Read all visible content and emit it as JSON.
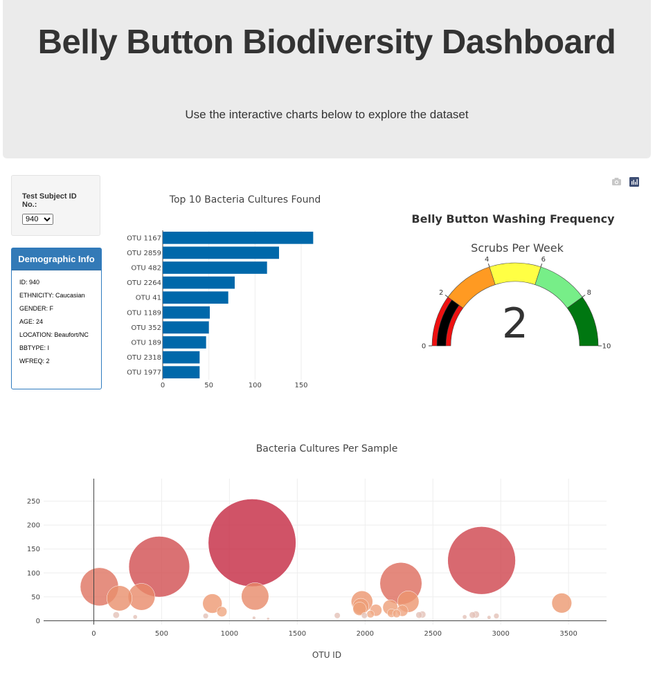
{
  "header": {
    "title": "Belly Button Biodiversity Dashboard",
    "subtitle": "Use the interactive charts below to explore the dataset"
  },
  "selector": {
    "label": "Test Subject ID No.:",
    "value": "940"
  },
  "demographics": {
    "title": "Demographic Info",
    "rows": [
      "ID: 940",
      "ETHNICITY: Caucasian",
      "GENDER: F",
      "AGE: 24",
      "LOCATION: Beaufort/NC",
      "BBTYPE: I",
      "WFREQ: 2"
    ]
  },
  "modebar": {
    "icons": [
      "camera-icon",
      "plotly-logo-icon"
    ]
  },
  "colors": {
    "bar": "#0068aa",
    "panel": "#337ab7"
  },
  "chart_data": [
    {
      "type": "bar",
      "orientation": "horizontal",
      "title": "Top 10 Bacteria Cultures Found",
      "categories": [
        "OTU 1167",
        "OTU 2859",
        "OTU 482",
        "OTU 2264",
        "OTU 41",
        "OTU 1189",
        "OTU 352",
        "OTU 189",
        "OTU 2318",
        "OTU 1977"
      ],
      "values": [
        163,
        126,
        113,
        78,
        71,
        51,
        50,
        47,
        40,
        40
      ],
      "xticks": [
        0,
        50,
        100,
        150
      ],
      "xlim": [
        0,
        171
      ]
    },
    {
      "type": "gauge",
      "title": "Belly Button Washing Frequency",
      "subtitle": "Scrubs Per Week",
      "value": 2,
      "display_value": "2",
      "range": [
        0,
        10
      ],
      "ticks": [
        0,
        2,
        4,
        6,
        8,
        10
      ],
      "steps": [
        {
          "range": [
            0,
            2
          ],
          "color": "#ee1111"
        },
        {
          "range": [
            2,
            4
          ],
          "color": "#ff9a22"
        },
        {
          "range": [
            4,
            6
          ],
          "color": "#ffff44"
        },
        {
          "range": [
            6,
            8
          ],
          "color": "#77ee88"
        },
        {
          "range": [
            8,
            10
          ],
          "color": "#007711"
        }
      ],
      "bar_color": "#000000"
    },
    {
      "type": "scatter",
      "mode": "bubble",
      "title": "Bacteria Cultures Per Sample",
      "xlabel": "OTU ID",
      "xlim": [
        -370,
        3780
      ],
      "ylim": [
        -8,
        297
      ],
      "xticks": [
        0,
        500,
        1000,
        1500,
        2000,
        2500,
        3000,
        3500
      ],
      "yticks": [
        0,
        50,
        100,
        150,
        200,
        250
      ],
      "colorscale": "Earth-like (peach to crimson by OTU count)",
      "points": [
        {
          "x": 1167,
          "y": 163
        },
        {
          "x": 2859,
          "y": 126
        },
        {
          "x": 482,
          "y": 113
        },
        {
          "x": 2264,
          "y": 78
        },
        {
          "x": 41,
          "y": 71
        },
        {
          "x": 1189,
          "y": 51
        },
        {
          "x": 352,
          "y": 50
        },
        {
          "x": 189,
          "y": 47
        },
        {
          "x": 2318,
          "y": 40
        },
        {
          "x": 1977,
          "y": 40
        },
        {
          "x": 3450,
          "y": 37
        },
        {
          "x": 874,
          "y": 36
        },
        {
          "x": 1968,
          "y": 30
        },
        {
          "x": 1960,
          "y": 25
        },
        {
          "x": 2186,
          "y": 28
        },
        {
          "x": 2275,
          "y": 21
        },
        {
          "x": 2080,
          "y": 22
        },
        {
          "x": 2195,
          "y": 16
        },
        {
          "x": 944,
          "y": 19
        },
        {
          "x": 2232,
          "y": 15
        },
        {
          "x": 2040,
          "y": 14
        },
        {
          "x": 2817,
          "y": 13
        },
        {
          "x": 2792,
          "y": 12
        },
        {
          "x": 2422,
          "y": 13
        },
        {
          "x": 2398,
          "y": 12
        },
        {
          "x": 165,
          "y": 12
        },
        {
          "x": 1795,
          "y": 11
        },
        {
          "x": 1995,
          "y": 11
        },
        {
          "x": 2968,
          "y": 10
        },
        {
          "x": 825,
          "y": 10
        },
        {
          "x": 2734,
          "y": 8
        },
        {
          "x": 305,
          "y": 8
        },
        {
          "x": 2914,
          "y": 7
        },
        {
          "x": 1181,
          "y": 6
        },
        {
          "x": 1285,
          "y": 4
        }
      ]
    }
  ]
}
